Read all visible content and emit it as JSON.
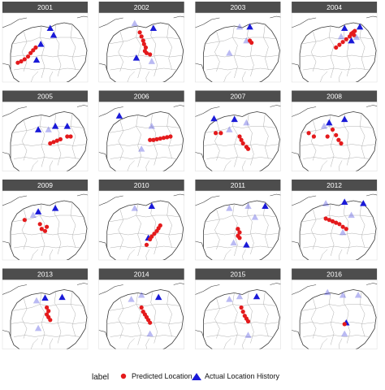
{
  "chart_data": {
    "type": "scatter",
    "layout": "facet-grid-4x4-maps",
    "panels": [
      {
        "year": "2001",
        "predicted": [
          [
            0.18,
            0.72
          ],
          [
            0.22,
            0.7
          ],
          [
            0.26,
            0.67
          ],
          [
            0.3,
            0.63
          ],
          [
            0.33,
            0.58
          ],
          [
            0.36,
            0.54
          ],
          [
            0.39,
            0.5
          ]
        ],
        "actual": [
          [
            0.45,
            0.45,
            1
          ],
          [
            0.4,
            0.68,
            1
          ],
          [
            0.56,
            0.22,
            1
          ],
          [
            0.6,
            0.32,
            1
          ]
        ]
      },
      {
        "year": "2002",
        "predicted": [
          [
            0.48,
            0.28
          ],
          [
            0.5,
            0.34
          ],
          [
            0.52,
            0.4
          ],
          [
            0.53,
            0.45
          ],
          [
            0.55,
            0.5
          ],
          [
            0.54,
            0.55
          ],
          [
            0.56,
            0.58
          ],
          [
            0.6,
            0.6
          ]
        ],
        "actual": [
          [
            0.42,
            0.15,
            0.3
          ],
          [
            0.64,
            0.22,
            1
          ],
          [
            0.44,
            0.65,
            1
          ],
          [
            0.62,
            0.7,
            0.3
          ]
        ]
      },
      {
        "year": "2003",
        "predicted": [
          [
            0.64,
            0.4
          ],
          [
            0.66,
            0.43
          ]
        ],
        "actual": [
          [
            0.52,
            0.2,
            0.3
          ],
          [
            0.64,
            0.2,
            1
          ],
          [
            0.4,
            0.58,
            0.3
          ],
          [
            0.6,
            0.4,
            0.3
          ]
        ]
      },
      {
        "year": "2004",
        "predicted": [
          [
            0.52,
            0.5
          ],
          [
            0.56,
            0.46
          ],
          [
            0.6,
            0.42
          ],
          [
            0.64,
            0.38
          ],
          [
            0.68,
            0.34
          ],
          [
            0.7,
            0.3
          ],
          [
            0.72,
            0.28
          ],
          [
            0.73,
            0.32
          ],
          [
            0.74,
            0.26
          ]
        ],
        "actual": [
          [
            0.62,
            0.22,
            1
          ],
          [
            0.8,
            0.2,
            1
          ],
          [
            0.7,
            0.4,
            1
          ],
          [
            0.76,
            0.35,
            0.3
          ],
          [
            0.58,
            0.34,
            0.3
          ]
        ]
      },
      {
        "year": "2005",
        "predicted": [
          [
            0.56,
            0.6
          ],
          [
            0.6,
            0.58
          ],
          [
            0.64,
            0.56
          ],
          [
            0.68,
            0.54
          ],
          [
            0.76,
            0.5
          ],
          [
            0.8,
            0.5
          ]
        ],
        "actual": [
          [
            0.42,
            0.4,
            1
          ],
          [
            0.62,
            0.35,
            1
          ],
          [
            0.76,
            0.35,
            1
          ],
          [
            0.54,
            0.4,
            0.3
          ]
        ]
      },
      {
        "year": "2006",
        "predicted": [
          [
            0.6,
            0.55
          ],
          [
            0.64,
            0.55
          ],
          [
            0.68,
            0.54
          ],
          [
            0.72,
            0.53
          ],
          [
            0.76,
            0.52
          ],
          [
            0.8,
            0.51
          ],
          [
            0.84,
            0.5
          ]
        ],
        "actual": [
          [
            0.24,
            0.2,
            1
          ],
          [
            0.62,
            0.35,
            0.3
          ],
          [
            0.5,
            0.68,
            0.3
          ]
        ]
      },
      {
        "year": "2007",
        "predicted": [
          [
            0.24,
            0.45
          ],
          [
            0.3,
            0.45
          ],
          [
            0.52,
            0.5
          ],
          [
            0.54,
            0.55
          ],
          [
            0.56,
            0.6
          ],
          [
            0.6,
            0.65
          ],
          [
            0.62,
            0.68
          ]
        ],
        "actual": [
          [
            0.22,
            0.24,
            1
          ],
          [
            0.46,
            0.25,
            1
          ],
          [
            0.6,
            0.3,
            0.3
          ],
          [
            0.4,
            0.4,
            0.3
          ]
        ]
      },
      {
        "year": "2008",
        "predicted": [
          [
            0.2,
            0.45
          ],
          [
            0.26,
            0.5
          ],
          [
            0.42,
            0.5
          ],
          [
            0.48,
            0.4
          ],
          [
            0.52,
            0.48
          ],
          [
            0.55,
            0.55
          ],
          [
            0.58,
            0.6
          ]
        ],
        "actual": [
          [
            0.44,
            0.3,
            1
          ],
          [
            0.62,
            0.25,
            1
          ],
          [
            0.38,
            0.35,
            0.3
          ]
        ]
      },
      {
        "year": "2009",
        "predicted": [
          [
            0.26,
            0.42
          ],
          [
            0.44,
            0.48
          ],
          [
            0.46,
            0.55
          ],
          [
            0.5,
            0.58
          ],
          [
            0.52,
            0.52
          ]
        ],
        "actual": [
          [
            0.42,
            0.3,
            1
          ],
          [
            0.62,
            0.25,
            1
          ],
          [
            0.36,
            0.35,
            0.3
          ]
        ]
      },
      {
        "year": "2010",
        "predicted": [
          [
            0.56,
            0.78
          ],
          [
            0.6,
            0.7
          ],
          [
            0.62,
            0.66
          ],
          [
            0.65,
            0.62
          ],
          [
            0.68,
            0.58
          ],
          [
            0.7,
            0.54
          ],
          [
            0.72,
            0.5
          ]
        ],
        "actual": [
          [
            0.42,
            0.25,
            0.3
          ],
          [
            0.62,
            0.22,
            1
          ],
          [
            0.58,
            0.68,
            1
          ]
        ]
      },
      {
        "year": "2011",
        "predicted": [
          [
            0.5,
            0.55
          ],
          [
            0.52,
            0.6
          ],
          [
            0.5,
            0.65
          ],
          [
            0.52,
            0.68
          ]
        ],
        "actual": [
          [
            0.4,
            0.25,
            0.3
          ],
          [
            0.62,
            0.22,
            0.3
          ],
          [
            0.7,
            0.38,
            0.3
          ],
          [
            0.82,
            0.22,
            1
          ],
          [
            0.6,
            0.78,
            1
          ],
          [
            0.45,
            0.75,
            0.3
          ]
        ]
      },
      {
        "year": "2012",
        "predicted": [
          [
            0.4,
            0.4
          ],
          [
            0.44,
            0.42
          ],
          [
            0.48,
            0.44
          ],
          [
            0.52,
            0.46
          ],
          [
            0.56,
            0.48
          ],
          [
            0.6,
            0.52
          ],
          [
            0.64,
            0.55
          ]
        ],
        "actual": [
          [
            0.4,
            0.18,
            0.3
          ],
          [
            0.62,
            0.16,
            1
          ],
          [
            0.84,
            0.18,
            1
          ],
          [
            0.7,
            0.35,
            0.3
          ],
          [
            0.6,
            0.6,
            0.3
          ]
        ]
      },
      {
        "year": "2013",
        "predicted": [
          [
            0.52,
            0.4
          ],
          [
            0.54,
            0.45
          ],
          [
            0.52,
            0.5
          ],
          [
            0.54,
            0.54
          ],
          [
            0.56,
            0.58
          ]
        ],
        "actual": [
          [
            0.4,
            0.3,
            0.3
          ],
          [
            0.5,
            0.26,
            1
          ],
          [
            0.7,
            0.25,
            1
          ],
          [
            0.42,
            0.7,
            0.3
          ]
        ]
      },
      {
        "year": "2014",
        "predicted": [
          [
            0.5,
            0.4
          ],
          [
            0.52,
            0.46
          ],
          [
            0.54,
            0.5
          ],
          [
            0.56,
            0.54
          ],
          [
            0.58,
            0.58
          ],
          [
            0.6,
            0.62
          ]
        ],
        "actual": [
          [
            0.38,
            0.28,
            0.3
          ],
          [
            0.5,
            0.22,
            0.3
          ],
          [
            0.7,
            0.25,
            1
          ],
          [
            0.6,
            0.78,
            0.3
          ]
        ]
      },
      {
        "year": "2015",
        "predicted": [
          [
            0.54,
            0.4
          ],
          [
            0.56,
            0.46
          ],
          [
            0.58,
            0.52
          ],
          [
            0.6,
            0.56
          ],
          [
            0.62,
            0.6
          ]
        ],
        "actual": [
          [
            0.4,
            0.28,
            0.3
          ],
          [
            0.52,
            0.24,
            0.3
          ],
          [
            0.72,
            0.24,
            1
          ],
          [
            0.62,
            0.8,
            0.3
          ]
        ]
      },
      {
        "year": "2016",
        "predicted": [
          [
            0.62,
            0.64
          ]
        ],
        "actual": [
          [
            0.42,
            0.18,
            0.3
          ],
          [
            0.6,
            0.22,
            0.3
          ],
          [
            0.78,
            0.22,
            0.3
          ],
          [
            0.64,
            0.62,
            1
          ],
          [
            0.62,
            0.78,
            0.3
          ]
        ]
      }
    ],
    "legend": {
      "title": "label",
      "position": "bottom",
      "entries": [
        {
          "label": "Predicted Location",
          "shape": "circle",
          "color": "#e41a1c"
        },
        {
          "label": "Actual Location History",
          "shape": "triangle",
          "color": "#1a1ad8"
        }
      ]
    },
    "colors": {
      "strip_bg": "#4d4d4d",
      "predicted": "#e41a1c",
      "actual": "#1a1ad8",
      "map_line": "#3a3a3a",
      "state_line": "#b0b0b0",
      "panel_border": "#d9d9d9"
    }
  }
}
